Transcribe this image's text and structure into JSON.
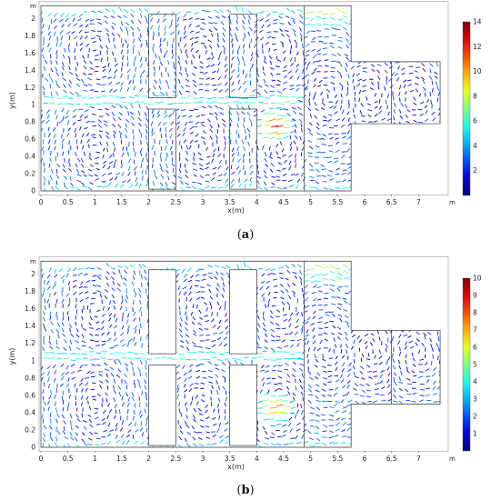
{
  "chart_data": [
    {
      "type": "vector-field",
      "caption_letter": "a",
      "xlabel": "x(m)",
      "ylabel": "y(m)",
      "x_unit": "m",
      "y_unit": "m",
      "xlim": [
        0,
        7.5
      ],
      "ylim": [
        0,
        2.1
      ],
      "x_ticks": [
        0,
        0.5,
        1,
        1.5,
        2,
        2.5,
        3,
        3.5,
        4,
        4.5,
        5,
        5.5,
        6,
        6.5,
        7
      ],
      "y_ticks": [
        0,
        0.2,
        0.4,
        0.6,
        0.8,
        1,
        1.2,
        1.4,
        1.6,
        1.8,
        2
      ],
      "colorbar": {
        "min": 0,
        "max": 14,
        "ticks": [
          2,
          4,
          6,
          8,
          10,
          12,
          14
        ],
        "colormap": "jet"
      },
      "domain_outline": [
        [
          0,
          0
        ],
        [
          5.75,
          0
        ],
        [
          5.75,
          0.78
        ],
        [
          7.4,
          0.78
        ],
        [
          7.4,
          1.5
        ],
        [
          5.75,
          1.5
        ],
        [
          5.75,
          2.15
        ],
        [
          0,
          2.15
        ]
      ],
      "internal_walls": [
        {
          "x": [
            2,
            2.5
          ],
          "y": [
            1.08,
            2.05
          ]
        },
        {
          "x": [
            3.5,
            4
          ],
          "y": [
            1.08,
            2.05
          ]
        },
        {
          "x": [
            2,
            2.5
          ],
          "y": [
            0.02,
            0.95
          ]
        },
        {
          "x": [
            3.5,
            4
          ],
          "y": [
            0.02,
            0.95
          ]
        }
      ],
      "partitions": [
        4.88,
        6.5
      ],
      "hotspot": {
        "x": 4.3,
        "y": 0.75,
        "value": 13
      }
    },
    {
      "type": "vector-field",
      "caption_letter": "b",
      "xlabel": "x(m)",
      "ylabel": "y(m)",
      "x_unit": "m",
      "y_unit": "m",
      "xlim": [
        0,
        7.5
      ],
      "ylim": [
        0,
        2.1
      ],
      "x_ticks": [
        0,
        0.5,
        1,
        1.5,
        2,
        2.5,
        3,
        3.5,
        4,
        4.5,
        5,
        5.5,
        6,
        6.5,
        7
      ],
      "y_ticks": [
        0,
        0.2,
        0.4,
        0.6,
        0.8,
        1,
        1.2,
        1.4,
        1.6,
        1.8,
        2
      ],
      "colorbar": {
        "min": 0,
        "max": 10,
        "ticks": [
          1,
          2,
          3,
          4,
          5,
          6,
          7,
          8,
          9,
          10
        ],
        "colormap": "jet"
      },
      "domain_outline": [
        [
          0,
          0
        ],
        [
          5.75,
          0
        ],
        [
          5.75,
          0.5
        ],
        [
          7.4,
          0.5
        ],
        [
          7.4,
          1.35
        ],
        [
          5.75,
          1.35
        ],
        [
          5.75,
          2.15
        ],
        [
          0,
          2.15
        ]
      ],
      "internal_walls": [
        {
          "x": [
            2,
            2.5
          ],
          "y": [
            1.08,
            2.05
          ]
        },
        {
          "x": [
            3.5,
            4
          ],
          "y": [
            1.08,
            2.05
          ]
        },
        {
          "x": [
            2,
            2.5
          ],
          "y": [
            0.02,
            0.95
          ]
        },
        {
          "x": [
            3.5,
            4
          ],
          "y": [
            0.02,
            0.95
          ]
        }
      ],
      "partitions": [
        4.88,
        6.5
      ],
      "hotspot": {
        "x": 4.3,
        "y": 0.45,
        "value": 8
      }
    }
  ]
}
